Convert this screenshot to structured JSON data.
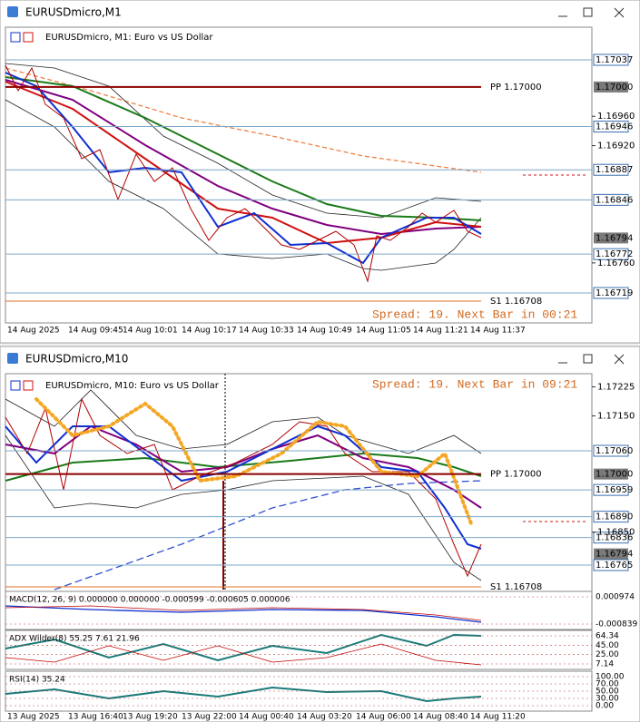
{
  "windows": [
    {
      "title": "EURUSDmicro,M1",
      "header": "EURUSDmicro, M1: Euro vs US Dollar",
      "level_prices": [
        "1.17037",
        "1.16946",
        "1.16887",
        "1.16846",
        "1.16772",
        "1.16719"
      ],
      "marker_prices": [
        "1.17000",
        "1.16794"
      ],
      "scale_prices": [
        "1.16960",
        "1.16920",
        "1.16760"
      ],
      "pivot": "PP 1.17000",
      "support": "S1 1.16708",
      "spread": "Spread: 19. Next Bar in 00:21",
      "time_labels": [
        "14 Aug 2025",
        "14 Aug 09:45",
        "14 Aug 10:01",
        "14 Aug 10:17",
        "14 Aug 10:33",
        "14 Aug 10:49",
        "14 Aug 11:05",
        "14 Aug 11:21",
        "14 Aug 11:37"
      ]
    },
    {
      "title": "EURUSDmicro,M10",
      "header": "EURUSDmicro, M10: Euro vs US Dollar",
      "level_prices": [
        "1.17060",
        "1.16959",
        "1.16890",
        "1.16836",
        "1.16765"
      ],
      "marker_prices": [
        "1.17000",
        "1.16794"
      ],
      "scale_prices": [
        "1.17225",
        "1.17150",
        "1.16850"
      ],
      "pivot": "PP 1.17000",
      "support": "S1 1.16708",
      "spread": "Spread: 19. Next Bar in 09:21",
      "time_labels": [
        "13 Aug 2025",
        "13 Aug 16:40",
        "13 Aug 19:20",
        "13 Aug 22:00",
        "14 Aug 00:40",
        "14 Aug 03:20",
        "14 Aug 06:00",
        "14 Aug 08:40",
        "14 Aug 11:20"
      ],
      "indicators": [
        {
          "label": "MACD(12, 26, 9) 0.000000 0.000000 -0.000599 -0.000605 0.000006",
          "scale": [
            "0.000974",
            "-0.000839"
          ]
        },
        {
          "label": "ADX Wilder(8) 55.25 7.61 21.96",
          "scale": [
            "64.34",
            "45.00",
            "25.00",
            "7.14"
          ]
        },
        {
          "label": "RSI(14) 35.24",
          "scale": [
            "100.00",
            "70.00",
            "50.00",
            "30.00",
            "0.00"
          ]
        }
      ]
    }
  ]
}
